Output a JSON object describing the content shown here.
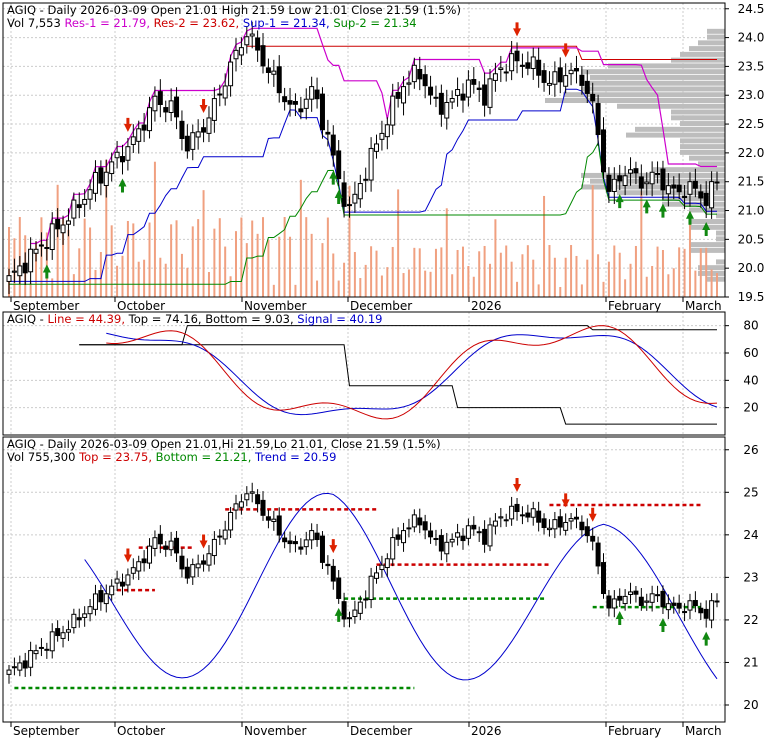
{
  "chart_data": [
    {
      "panel": "price",
      "type": "candlestick",
      "header": {
        "line1": [
          {
            "text": "AGIQ - Daily 2026-03-09 Open 21.01  High 21.59  Low 21.01  Close 21.59  (1.5%)",
            "color": "#000000"
          }
        ],
        "line2": [
          {
            "text": "Vol 7,553 ",
            "color": "#000000"
          },
          {
            "text": "Res-1 = 21.79, ",
            "color": "#cc00cc"
          },
          {
            "text": "Res-2 = 23.62, ",
            "color": "#cc0000"
          },
          {
            "text": "Sup-1 = 21.34, ",
            "color": "#0000cc"
          },
          {
            "text": "Sup-2 = 21.34",
            "color": "#008800"
          }
        ]
      },
      "ylim": [
        19.5,
        24.6
      ],
      "yticks": [
        "19.5",
        "20.0",
        "20.5",
        "21.0",
        "21.5",
        "22.0",
        "22.5",
        "23.0",
        "23.5",
        "24.0",
        "24.5"
      ],
      "xticks": [
        "September",
        "October",
        "November",
        "December",
        "2026",
        "February",
        "March"
      ]
    },
    {
      "panel": "oscillator",
      "type": "line",
      "header": [
        {
          "text": "AGIQ - ",
          "color": "#000000"
        },
        {
          "text": "Line = 44.39, ",
          "color": "#cc0000"
        },
        {
          "text": "Top = 74.16, ",
          "color": "#000000"
        },
        {
          "text": "Bottom = 9.03, ",
          "color": "#000000"
        },
        {
          "text": "Signal = 40.19",
          "color": "#0000cc"
        }
      ],
      "ylim": [
        0,
        90
      ],
      "yticks": [
        "20",
        "40",
        "60",
        "80"
      ]
    },
    {
      "panel": "trend",
      "type": "candlestick",
      "header": {
        "line1": [
          {
            "text": "AGIQ - Daily 2026-03-09 Open 21.01,Hi 21.59,Lo 21.01, Close 21.59  (1.5%)",
            "color": "#000000"
          }
        ],
        "line2": [
          {
            "text": "Vol 755,300  ",
            "color": "#000000"
          },
          {
            "text": "Top = 23.75, ",
            "color": "#cc0000"
          },
          {
            "text": "Bottom = 21.21, ",
            "color": "#008800"
          },
          {
            "text": "Trend = 20.59",
            "color": "#0000cc"
          }
        ]
      },
      "ylim": [
        19.6,
        26.3
      ],
      "yticks": [
        "20",
        "21",
        "22",
        "23",
        "24",
        "25",
        "26"
      ],
      "xticks": [
        "September",
        "October",
        "November",
        "December",
        "2026",
        "February",
        "March"
      ]
    }
  ]
}
